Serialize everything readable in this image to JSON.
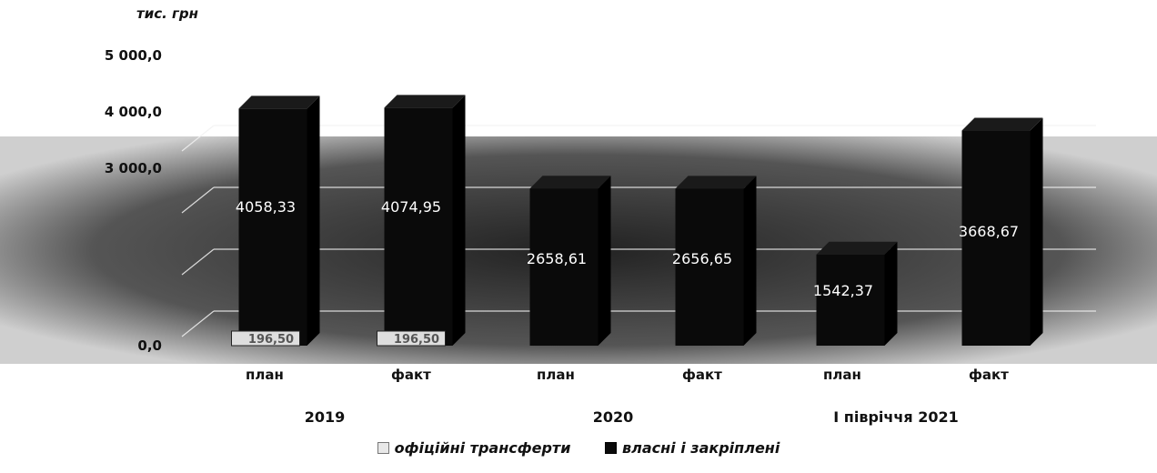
{
  "chart_data": {
    "type": "bar",
    "unit_label": "тис. грн",
    "y_ticks": [
      "0,0",
      "3 000,0",
      "4 000,0",
      "5 000,0"
    ],
    "ylim": [
      0,
      5000
    ],
    "grid": true,
    "legend_position": "bottom",
    "groups": [
      {
        "label": "2019",
        "categories": [
          "план",
          "факт"
        ]
      },
      {
        "label": "2020",
        "categories": [
          "план",
          "факт"
        ]
      },
      {
        "label": "І півріччя 2021",
        "categories": [
          "план",
          "факт"
        ]
      }
    ],
    "categories": [
      "план",
      "факт",
      "план",
      "факт",
      "план",
      "факт"
    ],
    "series": [
      {
        "name": "офіційні трансферти",
        "color": "#e8e8e8",
        "values": [
          196.5,
          196.5,
          0,
          0,
          0,
          0
        ],
        "labels": [
          "196,50",
          "196,50",
          "",
          "",
          "",
          ""
        ]
      },
      {
        "name": "власні і закріплені",
        "color": "#0a0a0a",
        "values": [
          4058.33,
          4074.95,
          2658.61,
          2656.65,
          1542.37,
          3668.67
        ],
        "labels": [
          "4058,33",
          "4074,95",
          "2658,61",
          "2656,65",
          "1542,37",
          "3668,67"
        ]
      }
    ]
  }
}
